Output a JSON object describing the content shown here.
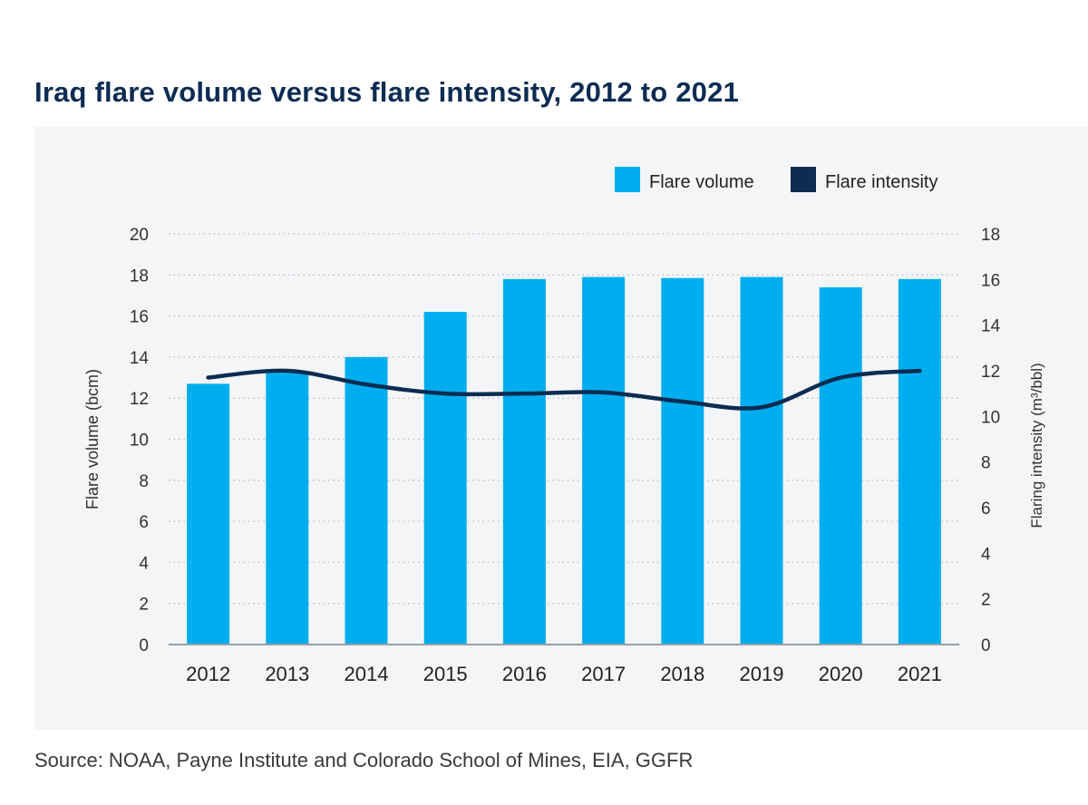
{
  "title": "Iraq flare volume versus flare intensity, 2012 to 2021",
  "source": "Source: NOAA, Payne Institute and Colorado School of Mines, EIA, GGFR",
  "colors": {
    "bar": "#00aeef",
    "line": "#0c2c52",
    "panel": "#f4f5f7",
    "grid": "#b9bdc4",
    "axis_text": "#333333"
  },
  "chart_data": {
    "type": "bar+line",
    "categories": [
      "2012",
      "2013",
      "2014",
      "2015",
      "2016",
      "2017",
      "2018",
      "2019",
      "2020",
      "2021"
    ],
    "series": [
      {
        "name": "Flare volume",
        "type": "bar",
        "axis": "left",
        "values": [
          12.7,
          13.3,
          14.0,
          16.2,
          17.8,
          17.9,
          17.85,
          17.9,
          17.4,
          17.8
        ]
      },
      {
        "name": "Flare intensity",
        "type": "line",
        "axis": "right",
        "values": [
          11.7,
          12.0,
          11.4,
          11.0,
          11.0,
          11.05,
          10.65,
          10.4,
          11.7,
          12.0
        ]
      }
    ],
    "ylabel_left": "Flare volume (bcm)",
    "ylabel_right": "Flaring intensity (m³/bbl)",
    "ylim_left": [
      0,
      20
    ],
    "ylim_right": [
      0,
      18
    ],
    "yticks_left": [
      0,
      2,
      4,
      6,
      8,
      10,
      12,
      14,
      16,
      18,
      20
    ],
    "yticks_right": [
      0,
      2,
      4,
      6,
      8,
      10,
      12,
      14,
      16,
      18
    ],
    "legend": [
      "Flare volume",
      "Flare intensity"
    ],
    "legend_position": "top-right",
    "grid": true
  }
}
